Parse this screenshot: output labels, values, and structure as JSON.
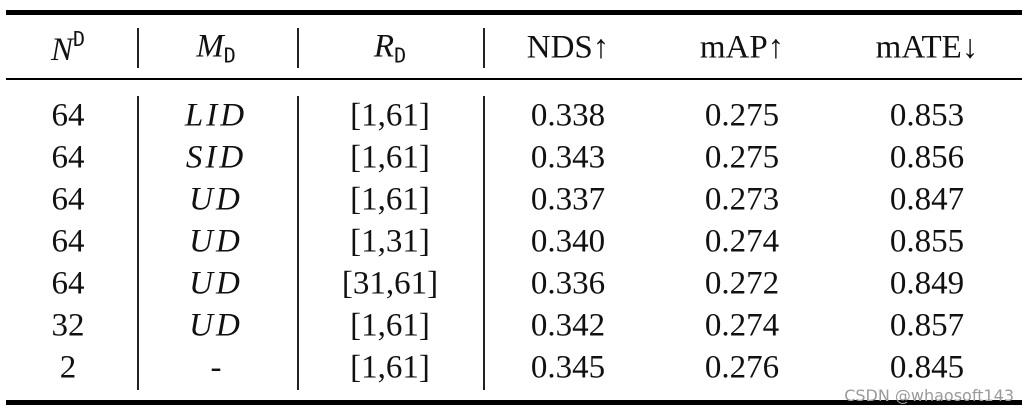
{
  "table": {
    "header": [
      {
        "main": "N",
        "sup": "D"
      },
      {
        "main": "M",
        "sub": "D"
      },
      {
        "main": "R",
        "sub": "D"
      },
      {
        "main": "NDS↑"
      },
      {
        "main": "mAP↑"
      },
      {
        "main": "mATE↓"
      }
    ],
    "rows": [
      [
        "64",
        "LID",
        "[1,61]",
        "0.338",
        "0.275",
        "0.853"
      ],
      [
        "64",
        "SID",
        "[1,61]",
        "0.343",
        "0.275",
        "0.856"
      ],
      [
        "64",
        "UD",
        "[1,61]",
        "0.337",
        "0.273",
        "0.847"
      ],
      [
        "64",
        "UD",
        "[1,31]",
        "0.340",
        "0.274",
        "0.855"
      ],
      [
        "64",
        "UD",
        "[31,61]",
        "0.336",
        "0.272",
        "0.849"
      ],
      [
        "32",
        "UD",
        "[1,61]",
        "0.342",
        "0.274",
        "0.857"
      ],
      [
        "2",
        "-",
        "[1,61]",
        "0.345",
        "0.276",
        "0.845"
      ]
    ],
    "watermark": "CSDN @whaosoft143"
  }
}
